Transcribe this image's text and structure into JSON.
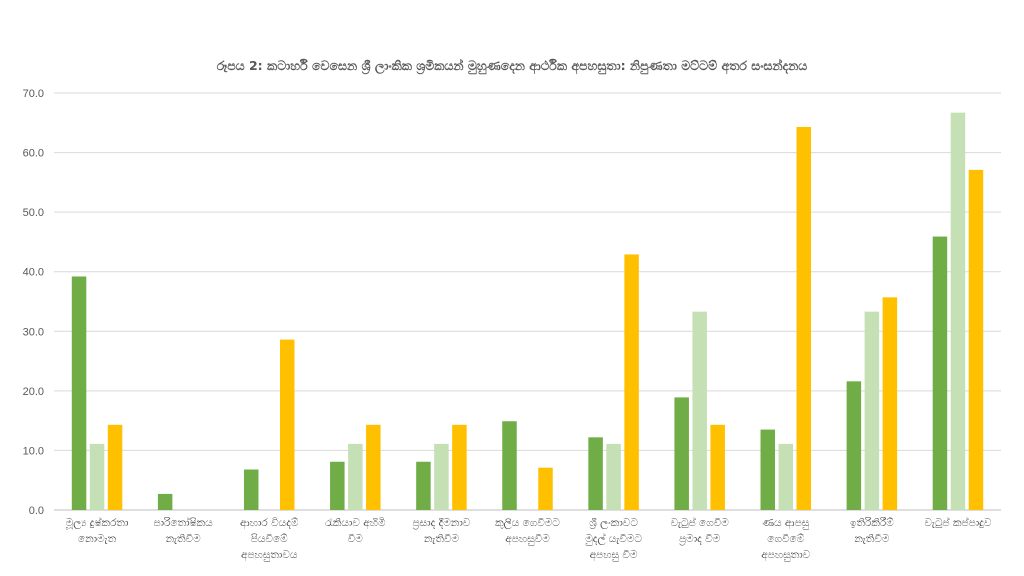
{
  "chart_data": {
    "type": "bar",
    "title": "රූපය 2: කටාර්හි වෙසෙන ශ්‍රී ලාංකික ශ්‍රමිකයන් මුහුණදෙන ආර්ථික අපහසුතා: නිපුණතා මට්ටම් අතර සංසන්දනය",
    "xlabel": "",
    "ylabel": "",
    "ylim": [
      0,
      70
    ],
    "yticks": [
      "0.0",
      "10.0",
      "20.0",
      "30.0",
      "40.0",
      "50.0",
      "60.0",
      "70.0"
    ],
    "grid": true,
    "legend": "none",
    "categories": [
      [
        "මූල්‍ය දුෂ්කරතා",
        "නොමැත"
      ],
      [
        "පාරිතෝෂිකය",
        "නැතිවීම"
      ],
      [
        "ආහාර වියදම්",
        "පියවීමේ",
        "අපහසුතාවය"
      ],
      [
        "රැකියාව අහිමි",
        "වීම"
      ],
      [
        "ප්‍රසාද දීමනාව",
        "නැතිවීම"
      ],
      [
        "කුලිය ගෙවීමට",
        "අපහසුවීම"
      ],
      [
        "ශ්‍රී ලංකාවට",
        "මුදල් යැවීමට",
        "අපහසු වීම"
      ],
      [
        "වැටුප් ගෙවීම",
        "ප්‍රමාද වීම"
      ],
      [
        "ණය ආපසු",
        "ගෙවීමේ",
        "අපහසුතාව"
      ],
      [
        "ඉතිරිකිරීම්",
        "නැතිවීම"
      ],
      [
        "වැටුප් කප්පාදුව"
      ]
    ],
    "series": [
      {
        "color": "#70ad47",
        "values": [
          39.2,
          2.7,
          6.8,
          8.1,
          8.1,
          14.9,
          12.2,
          18.9,
          13.5,
          21.6,
          45.9
        ]
      },
      {
        "color": "#c5e0b4",
        "values": [
          11.1,
          0.0,
          0.0,
          11.1,
          11.1,
          0.0,
          11.1,
          33.3,
          11.1,
          33.3,
          66.7
        ]
      },
      {
        "color": "#ffc000",
        "values": [
          14.3,
          0.0,
          28.6,
          14.3,
          14.3,
          7.1,
          42.9,
          14.3,
          64.3,
          35.7,
          57.1
        ]
      }
    ]
  }
}
